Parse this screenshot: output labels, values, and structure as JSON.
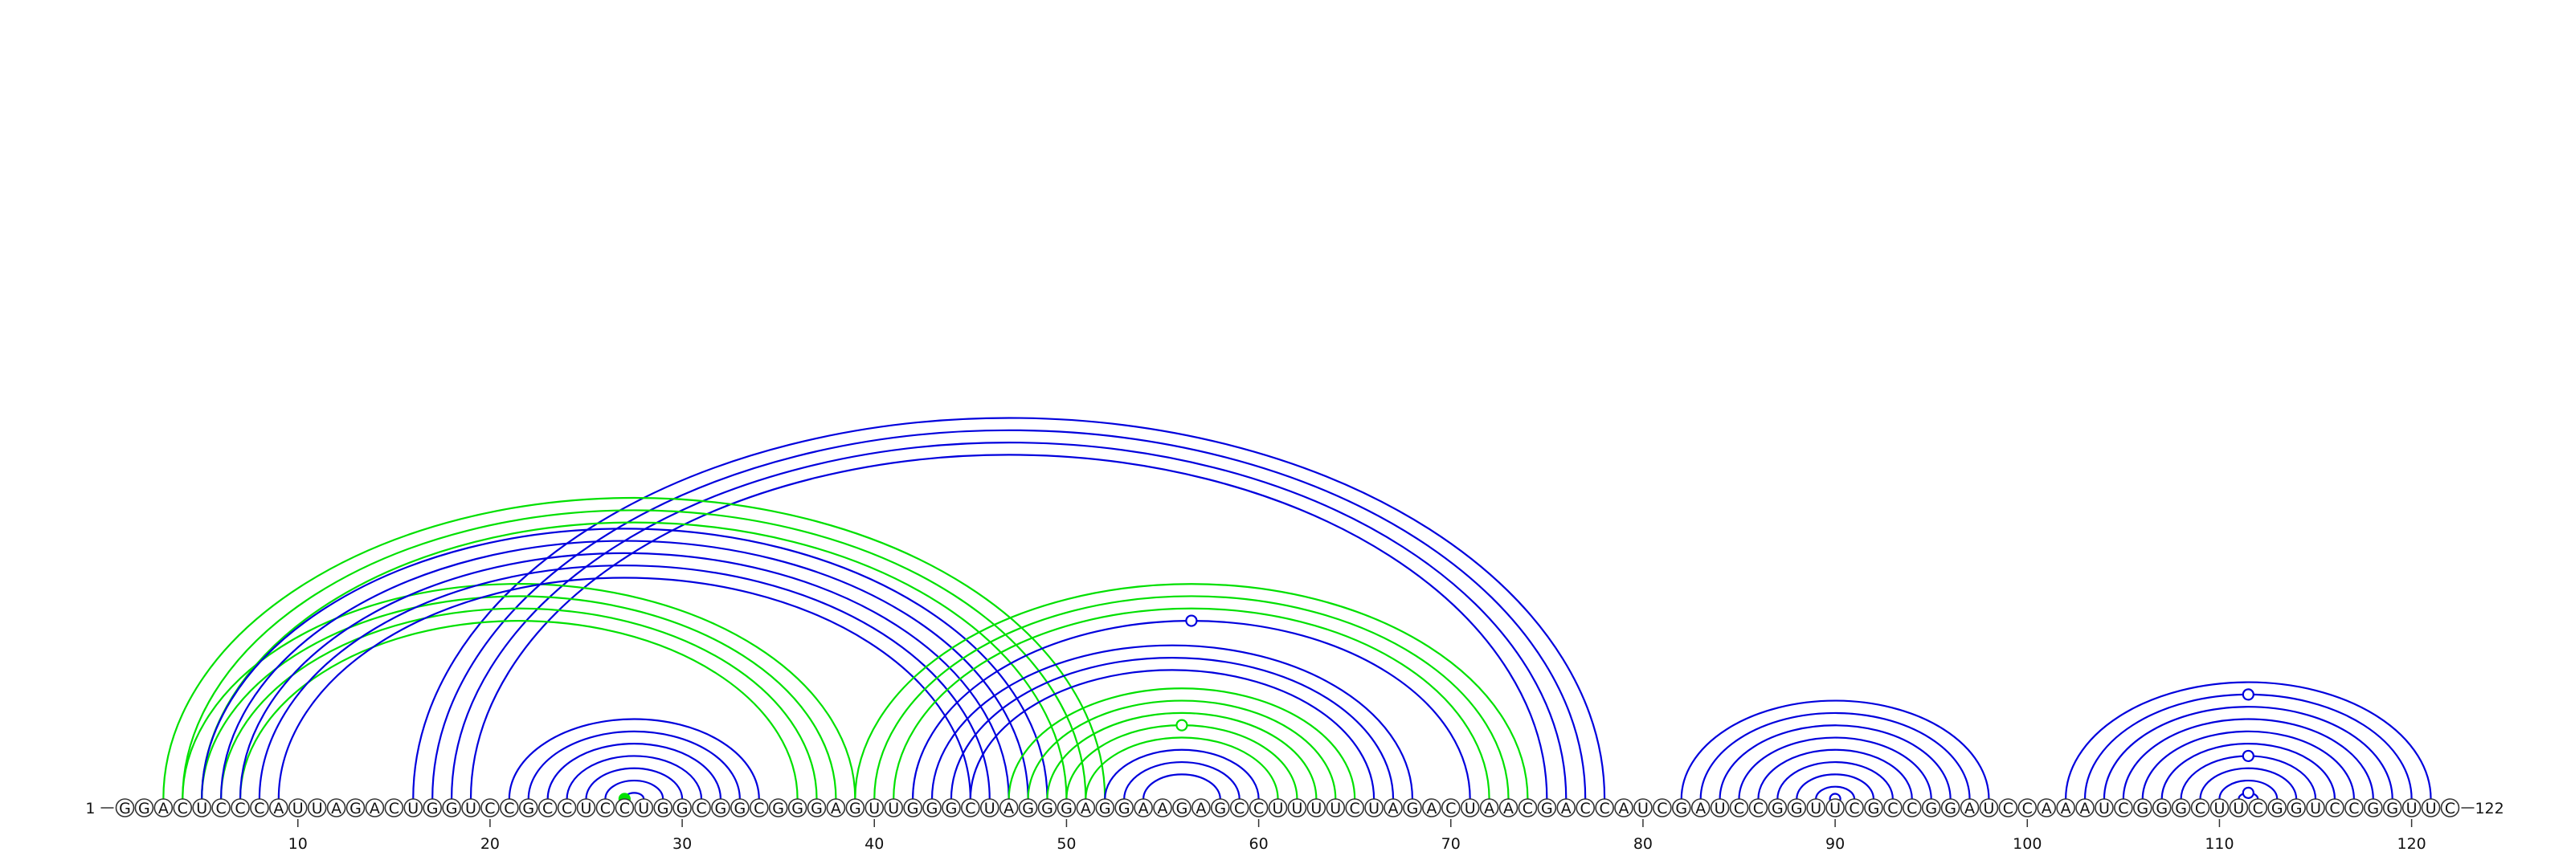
{
  "sequence": "GGACUCCCAUUAGACUGGUCCGCCUCCUGGCGGCGGGAGUUGGGCUAGGGAGGAAGAGCCUUUUCUAGACUAACGACCAUCGAUCCGGUUCGCCGGAUCCAAAUCGGGCUUCGGUCCGGUUC",
  "start_label": "1",
  "end_label": "122",
  "ticks": [
    10,
    20,
    30,
    40,
    50,
    60,
    70,
    80,
    90,
    100,
    110,
    120
  ],
  "colors": {
    "blue": "#0000dd",
    "green": "#00e000",
    "circle_stroke": "#333333"
  },
  "arcs": [
    {
      "i": 16,
      "j": 78,
      "color": "blue"
    },
    {
      "i": 17,
      "j": 77,
      "color": "blue"
    },
    {
      "i": 18,
      "j": 76,
      "color": "blue"
    },
    {
      "i": 19,
      "j": 75,
      "color": "blue"
    },
    {
      "i": 3,
      "j": 52,
      "color": "green"
    },
    {
      "i": 4,
      "j": 51,
      "color": "green"
    },
    {
      "i": 5,
      "j": 50,
      "color": "green"
    },
    {
      "i": 4,
      "j": 39,
      "color": "green"
    },
    {
      "i": 5,
      "j": 38,
      "color": "green"
    },
    {
      "i": 6,
      "j": 37,
      "color": "green"
    },
    {
      "i": 7,
      "j": 36,
      "color": "green"
    },
    {
      "i": 5,
      "j": 49,
      "color": "blue"
    },
    {
      "i": 6,
      "j": 48,
      "color": "blue"
    },
    {
      "i": 7,
      "j": 47,
      "color": "blue"
    },
    {
      "i": 8,
      "j": 46,
      "color": "blue"
    },
    {
      "i": 9,
      "j": 45,
      "color": "blue"
    },
    {
      "i": 21,
      "j": 34,
      "color": "blue"
    },
    {
      "i": 22,
      "j": 33,
      "color": "blue"
    },
    {
      "i": 23,
      "j": 32,
      "color": "blue"
    },
    {
      "i": 24,
      "j": 31,
      "color": "blue"
    },
    {
      "i": 25,
      "j": 30,
      "color": "blue"
    },
    {
      "i": 26,
      "j": 29,
      "color": "blue"
    },
    {
      "i": 27,
      "j": 28,
      "color": "blue"
    },
    {
      "i": 27,
      "j": 27,
      "color": "green",
      "marker": "filled"
    },
    {
      "i": 39,
      "j": 74,
      "color": "green"
    },
    {
      "i": 40,
      "j": 73,
      "color": "green"
    },
    {
      "i": 41,
      "j": 72,
      "color": "green"
    },
    {
      "i": 42,
      "j": 71,
      "color": "blue",
      "marker": "open"
    },
    {
      "i": 43,
      "j": 68,
      "color": "blue"
    },
    {
      "i": 44,
      "j": 67,
      "color": "blue"
    },
    {
      "i": 45,
      "j": 66,
      "color": "blue"
    },
    {
      "i": 47,
      "j": 65,
      "color": "green"
    },
    {
      "i": 48,
      "j": 64,
      "color": "green"
    },
    {
      "i": 49,
      "j": 63,
      "color": "green"
    },
    {
      "i": 50,
      "j": 62,
      "color": "green",
      "marker": "open"
    },
    {
      "i": 51,
      "j": 61,
      "color": "green"
    },
    {
      "i": 52,
      "j": 60,
      "color": "blue"
    },
    {
      "i": 53,
      "j": 59,
      "color": "blue"
    },
    {
      "i": 54,
      "j": 58,
      "color": "blue"
    },
    {
      "i": 82,
      "j": 98,
      "color": "blue"
    },
    {
      "i": 83,
      "j": 97,
      "color": "blue"
    },
    {
      "i": 84,
      "j": 96,
      "color": "blue"
    },
    {
      "i": 85,
      "j": 95,
      "color": "blue"
    },
    {
      "i": 86,
      "j": 94,
      "color": "blue"
    },
    {
      "i": 87,
      "j": 93,
      "color": "blue"
    },
    {
      "i": 88,
      "j": 92,
      "color": "blue"
    },
    {
      "i": 89,
      "j": 91,
      "color": "blue"
    },
    {
      "i": 90,
      "j": 90,
      "color": "blue",
      "marker": "open"
    },
    {
      "i": 102,
      "j": 121,
      "color": "blue"
    },
    {
      "i": 103,
      "j": 120,
      "color": "blue",
      "marker": "open"
    },
    {
      "i": 104,
      "j": 119,
      "color": "blue"
    },
    {
      "i": 105,
      "j": 118,
      "color": "blue"
    },
    {
      "i": 106,
      "j": 117,
      "color": "blue"
    },
    {
      "i": 107,
      "j": 116,
      "color": "blue"
    },
    {
      "i": 108,
      "j": 115,
      "color": "blue",
      "marker": "open"
    },
    {
      "i": 109,
      "j": 114,
      "color": "blue"
    },
    {
      "i": 110,
      "j": 113,
      "color": "blue"
    },
    {
      "i": 111,
      "j": 112,
      "color": "blue",
      "marker": "open"
    }
  ]
}
